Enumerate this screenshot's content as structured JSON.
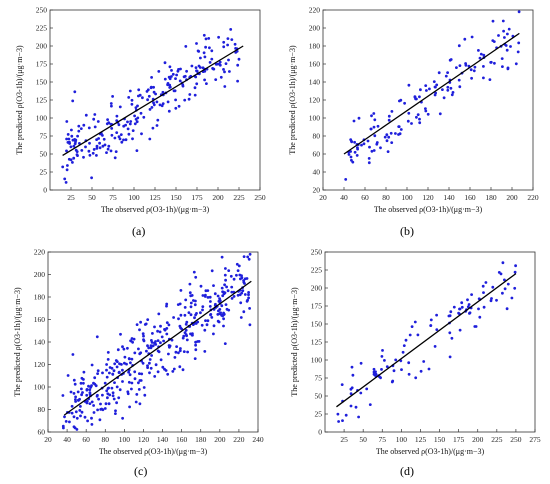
{
  "figure": {
    "panels": [
      {
        "label": "(a)"
      },
      {
        "label": "(b)"
      },
      {
        "label": "(c)"
      },
      {
        "label": "(d)"
      }
    ]
  },
  "colors": {
    "points": "#1f1fdb",
    "fit_line": "#000000",
    "axes": "#333333"
  },
  "chart_data": [
    {
      "type": "scatter",
      "xlabel": "The observed ρ(O3-1h)/(μg·m−3)",
      "ylabel": "The predicted ρ(O3-1h)/(μg·m−3)",
      "xlim": [
        0,
        250
      ],
      "ylim": [
        0,
        250
      ],
      "xticks": [
        25,
        50,
        75,
        100,
        125,
        150,
        175,
        200,
        225,
        250
      ],
      "yticks": [
        0,
        25,
        50,
        75,
        100,
        125,
        150,
        175,
        200,
        225,
        250
      ],
      "fit_line": {
        "x": [
          15,
          230
        ],
        "y": [
          48,
          200
        ]
      },
      "n_points": 260,
      "seed": 11,
      "x_range": [
        15,
        225
      ],
      "noise": 22
    },
    {
      "type": "scatter",
      "xlabel": "The observed ρ(O3-1h)/(μg·m−3)",
      "ylabel": "The predicted ρ(O3-1h)/(μg·m−3)",
      "xlim": [
        20,
        220
      ],
      "ylim": [
        20,
        220
      ],
      "xticks": [
        20,
        40,
        60,
        80,
        100,
        120,
        140,
        160,
        180,
        200,
        220
      ],
      "yticks": [
        20,
        40,
        60,
        80,
        100,
        120,
        140,
        160,
        180,
        200,
        220
      ],
      "fit_line": {
        "x": [
          40,
          207
        ],
        "y": [
          60,
          194
        ]
      },
      "n_points": 150,
      "seed": 23,
      "x_range": [
        40,
        207
      ],
      "noise": 14
    },
    {
      "type": "scatter",
      "xlabel": "The observed ρ(O3-1h)/(μg·m−3)",
      "ylabel": "The predicted ρ(O3-1h)/(μg·m−3)",
      "xlim": [
        20,
        240
      ],
      "ylim": [
        60,
        220
      ],
      "xticks": [
        20,
        40,
        60,
        80,
        100,
        120,
        140,
        160,
        180,
        200,
        220,
        240
      ],
      "yticks": [
        60,
        80,
        100,
        120,
        140,
        160,
        180,
        200,
        220
      ],
      "fit_line": {
        "x": [
          37,
          233
        ],
        "y": [
          75,
          194
        ]
      },
      "n_points": 420,
      "seed": 37,
      "x_range": [
        35,
        232
      ],
      "noise": 16
    },
    {
      "type": "scatter",
      "xlabel": "The observed ρ(O3-1h)/(μg·m−3)",
      "ylabel": "The predicted ρ(O3-1h)/(μg·m−3)",
      "xlim": [
        0,
        275
      ],
      "ylim": [
        0,
        250
      ],
      "xticks": [
        25,
        50,
        75,
        100,
        125,
        150,
        175,
        200,
        225,
        250,
        275
      ],
      "yticks": [
        0,
        25,
        50,
        75,
        100,
        125,
        150,
        175,
        200,
        225,
        250
      ],
      "fit_line": {
        "x": [
          15,
          250
        ],
        "y": [
          35,
          220
        ]
      },
      "n_points": 110,
      "seed": 53,
      "x_range": [
        15,
        250
      ],
      "noise": 18
    }
  ]
}
